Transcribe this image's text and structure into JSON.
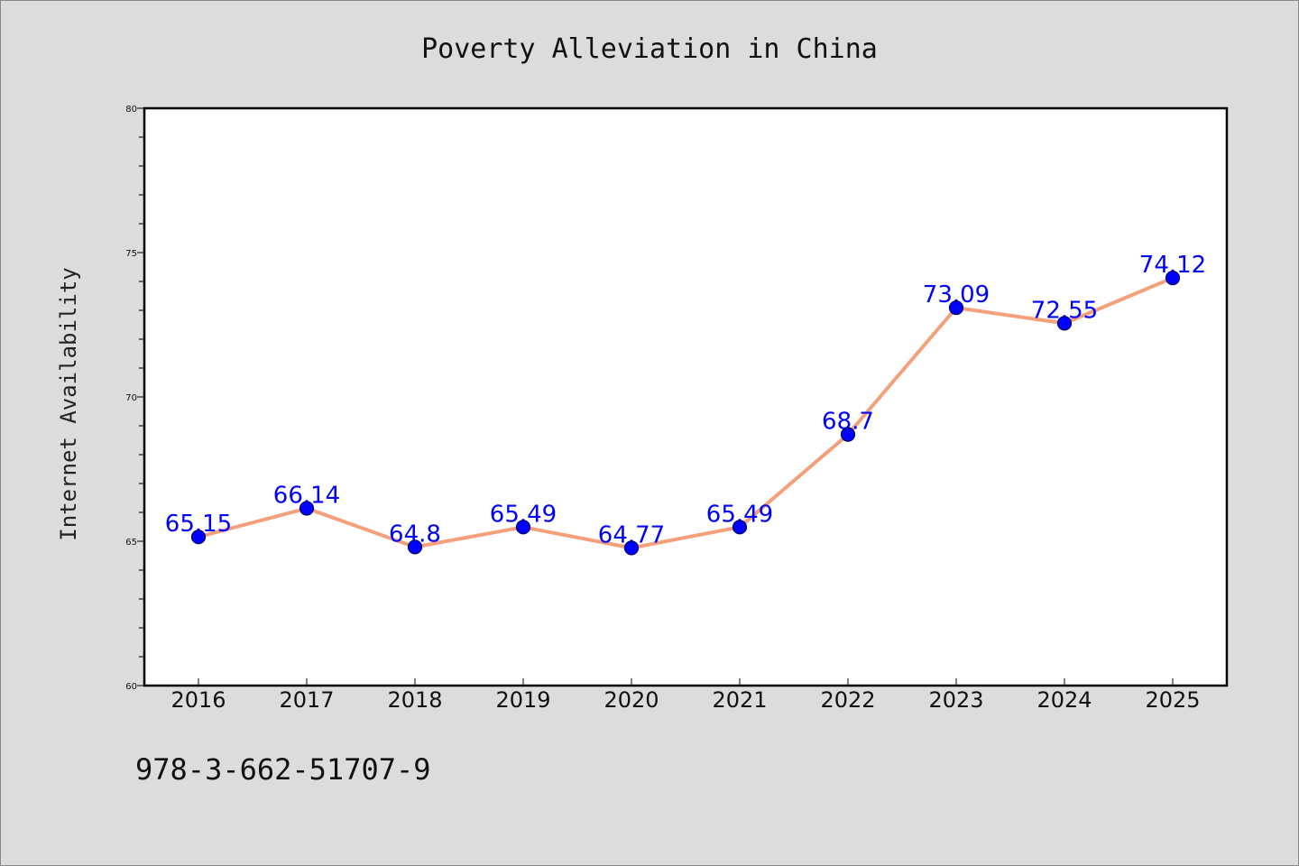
{
  "chart_data": {
    "type": "line",
    "title": "Poverty Alleviation in China",
    "xlabel": "",
    "ylabel": "Internet Availability",
    "categories": [
      "2016",
      "2017",
      "2018",
      "2019",
      "2020",
      "2021",
      "2022",
      "2023",
      "2024",
      "2025"
    ],
    "series": [
      {
        "values": [
          65.15,
          66.14,
          64.8,
          65.49,
          64.77,
          65.49,
          68.7,
          73.09,
          72.55,
          74.12
        ],
        "data_labels": [
          "65.15",
          "66.14",
          "64.8",
          "65.49",
          "64.77",
          "65.49",
          "68.7",
          "73.09",
          "72.55",
          "74.12"
        ]
      }
    ],
    "ylim": [
      60,
      80
    ],
    "yticks": [
      "60",
      "65",
      "70",
      "75",
      "80"
    ],
    "grid": false,
    "legend": "none",
    "colors": {
      "line": "#f4a07a",
      "marker": "#0000ff",
      "marker_edge": "#000066",
      "label": "#0000ff",
      "plot_bg": "#ffffff",
      "page_bg": "#dcdcdc"
    }
  },
  "footer": {
    "text": "978-3-662-51707-9"
  }
}
